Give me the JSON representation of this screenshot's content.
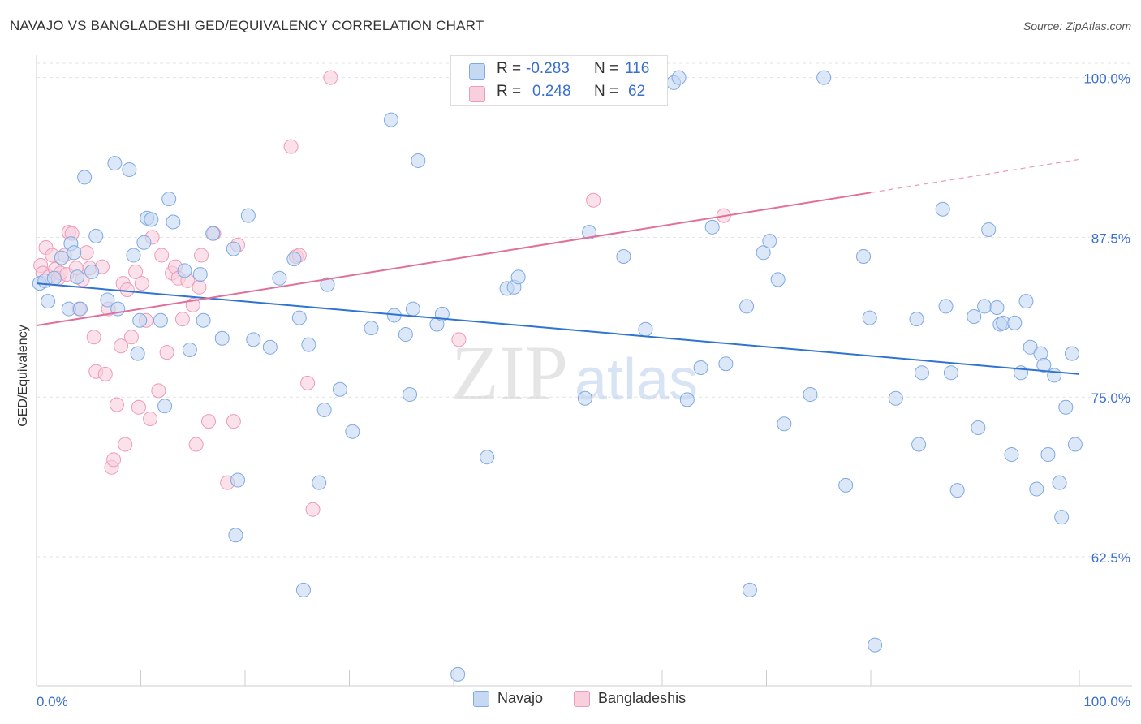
{
  "title": "NAVAJO VS BANGLADESHI GED/EQUIVALENCY CORRELATION CHART",
  "source": "Source: ZipAtlas.com",
  "watermark": {
    "zip": "ZIP",
    "atlas": "atlas"
  },
  "colors": {
    "navajo_fill": "#c5d9f3",
    "navajo_stroke": "#7ea9e1",
    "navajo_line": "#2f74d0",
    "bangladeshi_fill": "#f8cfdc",
    "bangladeshi_stroke": "#ee9bb5",
    "bangladeshi_line": "#e0709a",
    "value_text": "#3b6fcf",
    "grid": "#e3e3e3"
  },
  "stats": [
    {
      "r_label": "R =",
      "r_value": "-0.283",
      "n_label": "N =",
      "n_value": "116"
    },
    {
      "r_label": "R =",
      "r_value": "0.248",
      "n_label": "N =",
      "n_value": "62"
    }
  ],
  "legend": [
    "Navajo",
    "Bangladeshis"
  ],
  "chart_data": {
    "type": "scatter",
    "title": "NAVAJO VS BANGLADESHI GED/EQUIVALENCY CORRELATION CHART",
    "xlabel": "",
    "ylabel": "GED/Equivalency",
    "x_tick_labels": [
      "0.0%",
      "100.0%"
    ],
    "y_tick_labels": [
      "100.0%",
      "87.5%",
      "75.0%",
      "62.5%"
    ],
    "y_ticks": [
      100,
      87.5,
      75,
      62.5
    ],
    "xlim": [
      0,
      100
    ],
    "ylim": [
      52.4,
      101.5
    ],
    "grid": true,
    "legend_position": "bottom",
    "series": [
      {
        "name": "Navajo",
        "trend": {
          "x": [
            0,
            100
          ],
          "y": [
            83.9,
            76.8
          ]
        },
        "points": [
          [
            0.3,
            83.9
          ],
          [
            0.8,
            84.1
          ],
          [
            1.1,
            82.5
          ],
          [
            1.7,
            84.3
          ],
          [
            2.4,
            85.9
          ],
          [
            3.1,
            81.9
          ],
          [
            3.3,
            87.0
          ],
          [
            3.6,
            86.3
          ],
          [
            3.9,
            84.4
          ],
          [
            4.2,
            81.9
          ],
          [
            4.6,
            92.2
          ],
          [
            5.3,
            84.8
          ],
          [
            5.7,
            87.6
          ],
          [
            6.8,
            82.6
          ],
          [
            7.5,
            93.3
          ],
          [
            7.8,
            81.9
          ],
          [
            8.9,
            92.8
          ],
          [
            9.3,
            86.1
          ],
          [
            9.7,
            78.4
          ],
          [
            9.9,
            81.0
          ],
          [
            10.3,
            87.1
          ],
          [
            10.6,
            89.0
          ],
          [
            11.0,
            88.9
          ],
          [
            11.9,
            81.0
          ],
          [
            12.3,
            74.3
          ],
          [
            12.7,
            90.5
          ],
          [
            13.1,
            88.7
          ],
          [
            14.2,
            84.9
          ],
          [
            14.7,
            78.7
          ],
          [
            15.7,
            84.6
          ],
          [
            16.0,
            81.0
          ],
          [
            16.9,
            87.8
          ],
          [
            17.8,
            79.6
          ],
          [
            18.9,
            86.6
          ],
          [
            19.3,
            68.5
          ],
          [
            19.1,
            64.2
          ],
          [
            20.3,
            89.2
          ],
          [
            20.8,
            79.5
          ],
          [
            22.4,
            78.9
          ],
          [
            23.3,
            84.3
          ],
          [
            24.7,
            85.8
          ],
          [
            25.2,
            81.2
          ],
          [
            25.6,
            59.9
          ],
          [
            26.1,
            79.1
          ],
          [
            27.1,
            68.3
          ],
          [
            27.6,
            74.0
          ],
          [
            27.9,
            83.8
          ],
          [
            29.1,
            75.6
          ],
          [
            30.3,
            72.3
          ],
          [
            32.1,
            80.4
          ],
          [
            34.0,
            96.7
          ],
          [
            34.3,
            81.4
          ],
          [
            35.4,
            79.9
          ],
          [
            35.8,
            75.2
          ],
          [
            36.1,
            81.9
          ],
          [
            36.6,
            93.5
          ],
          [
            38.4,
            80.7
          ],
          [
            38.9,
            81.5
          ],
          [
            40.4,
            53.3
          ],
          [
            43.2,
            70.3
          ],
          [
            45.1,
            83.5
          ],
          [
            45.8,
            83.6
          ],
          [
            46.2,
            84.4
          ],
          [
            52.6,
            74.9
          ],
          [
            53.0,
            87.9
          ],
          [
            53.4,
            100.0
          ],
          [
            56.3,
            86.0
          ],
          [
            58.4,
            80.3
          ],
          [
            61.1,
            99.6
          ],
          [
            61.6,
            100.0
          ],
          [
            62.4,
            74.8
          ],
          [
            63.7,
            77.3
          ],
          [
            64.8,
            88.3
          ],
          [
            66.1,
            77.6
          ],
          [
            68.1,
            82.1
          ],
          [
            68.4,
            59.9
          ],
          [
            69.7,
            86.3
          ],
          [
            70.3,
            87.2
          ],
          [
            71.1,
            84.2
          ],
          [
            71.7,
            72.9
          ],
          [
            74.2,
            75.2
          ],
          [
            75.5,
            100.0
          ],
          [
            77.6,
            68.1
          ],
          [
            79.3,
            86.0
          ],
          [
            79.9,
            81.2
          ],
          [
            80.4,
            55.6
          ],
          [
            82.4,
            74.9
          ],
          [
            84.4,
            81.1
          ],
          [
            84.6,
            71.3
          ],
          [
            84.9,
            76.9
          ],
          [
            86.9,
            89.7
          ],
          [
            87.2,
            82.1
          ],
          [
            87.7,
            76.9
          ],
          [
            88.3,
            67.7
          ],
          [
            89.9,
            81.3
          ],
          [
            90.3,
            72.6
          ],
          [
            90.9,
            82.1
          ],
          [
            91.3,
            88.1
          ],
          [
            92.1,
            82.0
          ],
          [
            92.4,
            80.7
          ],
          [
            92.7,
            80.8
          ],
          [
            93.5,
            70.5
          ],
          [
            93.8,
            80.8
          ],
          [
            94.4,
            76.9
          ],
          [
            94.9,
            82.5
          ],
          [
            95.3,
            78.9
          ],
          [
            95.9,
            67.8
          ],
          [
            96.3,
            78.4
          ],
          [
            96.6,
            77.5
          ],
          [
            97.0,
            70.5
          ],
          [
            97.6,
            76.7
          ],
          [
            98.1,
            68.3
          ],
          [
            98.3,
            65.6
          ],
          [
            98.7,
            74.2
          ],
          [
            99.3,
            78.4
          ],
          [
            99.6,
            71.3
          ]
        ]
      },
      {
        "name": "Bangladeshis",
        "trend": {
          "x": [
            0,
            100
          ],
          "y": [
            80.6,
            93.6
          ]
        },
        "points": [
          [
            0.4,
            85.3
          ],
          [
            0.6,
            84.7
          ],
          [
            0.9,
            86.7
          ],
          [
            1.2,
            84.4
          ],
          [
            1.5,
            86.1
          ],
          [
            1.8,
            85.0
          ],
          [
            2.1,
            84.3
          ],
          [
            2.3,
            84.7
          ],
          [
            2.7,
            86.1
          ],
          [
            2.9,
            84.6
          ],
          [
            3.1,
            87.9
          ],
          [
            3.4,
            87.8
          ],
          [
            3.8,
            85.1
          ],
          [
            4.1,
            81.9
          ],
          [
            4.4,
            84.2
          ],
          [
            4.8,
            86.3
          ],
          [
            5.1,
            85.1
          ],
          [
            5.5,
            79.7
          ],
          [
            5.7,
            77.0
          ],
          [
            6.3,
            85.2
          ],
          [
            6.6,
            76.8
          ],
          [
            6.9,
            81.9
          ],
          [
            7.2,
            69.5
          ],
          [
            7.4,
            70.1
          ],
          [
            7.7,
            74.4
          ],
          [
            8.1,
            79.0
          ],
          [
            8.3,
            83.9
          ],
          [
            8.5,
            71.3
          ],
          [
            8.7,
            83.4
          ],
          [
            9.1,
            79.7
          ],
          [
            9.5,
            84.8
          ],
          [
            9.8,
            74.2
          ],
          [
            10.1,
            83.9
          ],
          [
            10.5,
            81.0
          ],
          [
            10.9,
            73.3
          ],
          [
            11.1,
            87.5
          ],
          [
            11.7,
            75.5
          ],
          [
            12.0,
            86.1
          ],
          [
            12.5,
            78.5
          ],
          [
            13.0,
            84.7
          ],
          [
            13.3,
            85.2
          ],
          [
            13.6,
            84.3
          ],
          [
            14.0,
            81.1
          ],
          [
            14.5,
            84.1
          ],
          [
            15.0,
            82.2
          ],
          [
            15.3,
            71.3
          ],
          [
            15.6,
            83.6
          ],
          [
            15.8,
            86.1
          ],
          [
            16.5,
            73.1
          ],
          [
            17.0,
            87.8
          ],
          [
            18.3,
            68.3
          ],
          [
            18.9,
            73.1
          ],
          [
            19.3,
            86.9
          ],
          [
            24.4,
            94.6
          ],
          [
            24.9,
            86.0
          ],
          [
            25.2,
            86.1
          ],
          [
            26.0,
            76.1
          ],
          [
            26.5,
            66.2
          ],
          [
            28.2,
            100.0
          ],
          [
            40.5,
            79.5
          ],
          [
            53.4,
            90.4
          ],
          [
            65.9,
            89.2
          ]
        ]
      }
    ]
  }
}
